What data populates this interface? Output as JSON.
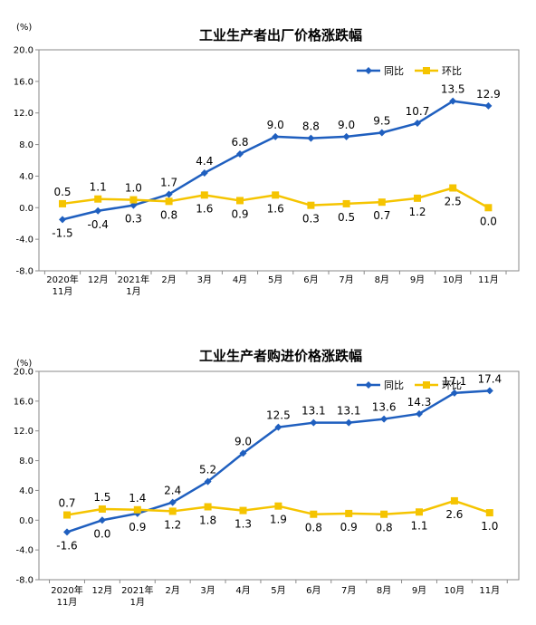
{
  "chart_data": [
    {
      "type": "line",
      "title": "工业生产者出厂价格涨跌幅",
      "unit": "(%)",
      "categories": [
        [
          "2020年",
          "11月"
        ],
        [
          "12月"
        ],
        [
          "2021年",
          "1月"
        ],
        [
          "2月"
        ],
        [
          "3月"
        ],
        [
          "4月"
        ],
        [
          "5月"
        ],
        [
          "6月"
        ],
        [
          "7月"
        ],
        [
          "8月"
        ],
        [
          "9月"
        ],
        [
          "10月"
        ],
        [
          "11月"
        ]
      ],
      "ylim": [
        -8.0,
        20.0
      ],
      "yticks": [
        "-8.0",
        "-4.0",
        "0.0",
        "4.0",
        "8.0",
        "12.0",
        "16.0",
        "20.0"
      ],
      "grid": false,
      "legend_position": "top-right",
      "series": [
        {
          "name": "同比",
          "color": "#1f5fbf",
          "marker": "diamond",
          "values": [
            -1.5,
            -0.4,
            0.3,
            1.7,
            4.4,
            6.8,
            9.0,
            8.8,
            9.0,
            9.5,
            10.7,
            13.5,
            12.9
          ],
          "labels": [
            "-1.5",
            "-0.4",
            "0.3",
            "1.7",
            "4.4",
            "6.8",
            "9.0",
            "8.8",
            "9.0",
            "9.5",
            "10.7",
            "13.5",
            "12.9"
          ]
        },
        {
          "name": "环比",
          "color": "#f5c400",
          "marker": "square",
          "values": [
            0.5,
            1.1,
            1.0,
            0.8,
            1.6,
            0.9,
            1.6,
            0.3,
            0.5,
            0.7,
            1.2,
            2.5,
            0.0
          ],
          "labels": [
            "0.5",
            "1.1",
            "1.0",
            "0.8",
            "1.6",
            "0.9",
            "1.6",
            "0.3",
            "0.5",
            "0.7",
            "1.2",
            "2.5",
            "0.0"
          ]
        }
      ]
    },
    {
      "type": "line",
      "title": "工业生产者购进价格涨跌幅",
      "unit": "(%)",
      "categories": [
        [
          "2020年",
          "11月"
        ],
        [
          "12月"
        ],
        [
          "2021年",
          "1月"
        ],
        [
          "2月"
        ],
        [
          "3月"
        ],
        [
          "4月"
        ],
        [
          "5月"
        ],
        [
          "6月"
        ],
        [
          "7月"
        ],
        [
          "8月"
        ],
        [
          "9月"
        ],
        [
          "10月"
        ],
        [
          "11月"
        ]
      ],
      "ylim": [
        -8.0,
        20.0
      ],
      "yticks": [
        "-8.0",
        "-4.0",
        "0.0",
        "4.0",
        "8.0",
        "12.0",
        "16.0",
        "20.0"
      ],
      "grid": false,
      "legend_position": "top-right",
      "series": [
        {
          "name": "同比",
          "color": "#1f5fbf",
          "marker": "diamond",
          "values": [
            -1.6,
            0.0,
            0.9,
            2.4,
            5.2,
            9.0,
            12.5,
            13.1,
            13.1,
            13.6,
            14.3,
            17.1,
            17.4
          ],
          "labels": [
            "-1.6",
            "0.0",
            "0.9",
            "2.4",
            "5.2",
            "9.0",
            "12.5",
            "13.1",
            "13.1",
            "13.6",
            "14.3",
            "17.1",
            "17.4"
          ]
        },
        {
          "name": "环比",
          "color": "#f5c400",
          "marker": "square",
          "values": [
            0.7,
            1.5,
            1.4,
            1.2,
            1.8,
            1.3,
            1.9,
            0.8,
            0.9,
            0.8,
            1.1,
            2.6,
            1.0
          ],
          "labels": [
            "0.7",
            "1.5",
            "1.4",
            "1.2",
            "1.8",
            "1.3",
            "1.9",
            "0.8",
            "0.9",
            "0.8",
            "1.1",
            "2.6",
            "1.0"
          ]
        }
      ]
    }
  ]
}
